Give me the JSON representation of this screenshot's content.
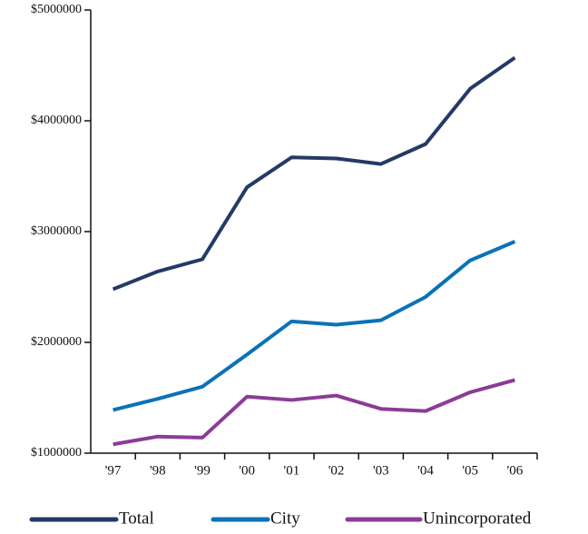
{
  "chart_data": {
    "type": "line",
    "categories": [
      "'97",
      "'98",
      "'99",
      "'00",
      "'01",
      "'02",
      "'03",
      "'04",
      "'05",
      "'06"
    ],
    "series": [
      {
        "name": "Total",
        "color": "#243a66",
        "values": [
          2480000,
          2640000,
          2750000,
          3400000,
          3670000,
          3660000,
          3610000,
          3790000,
          4290000,
          4570000
        ]
      },
      {
        "name": "City",
        "color": "#0a72b8",
        "values": [
          1390000,
          1490000,
          1600000,
          1890000,
          2190000,
          2160000,
          2200000,
          2410000,
          2740000,
          2910000
        ]
      },
      {
        "name": "Unincorporated",
        "color": "#8b3c96",
        "values": [
          1080000,
          1150000,
          1140000,
          1510000,
          1480000,
          1520000,
          1400000,
          1380000,
          1550000,
          1660000
        ]
      }
    ],
    "ylim": [
      1000000,
      5000000
    ],
    "yticks": [
      {
        "value": 1000000,
        "label": "$1000000"
      },
      {
        "value": 2000000,
        "label": "$2000000"
      },
      {
        "value": 3000000,
        "label": "$3000000"
      },
      {
        "value": 4000000,
        "label": "$4000000"
      },
      {
        "value": 5000000,
        "label": "$5000000"
      }
    ]
  }
}
